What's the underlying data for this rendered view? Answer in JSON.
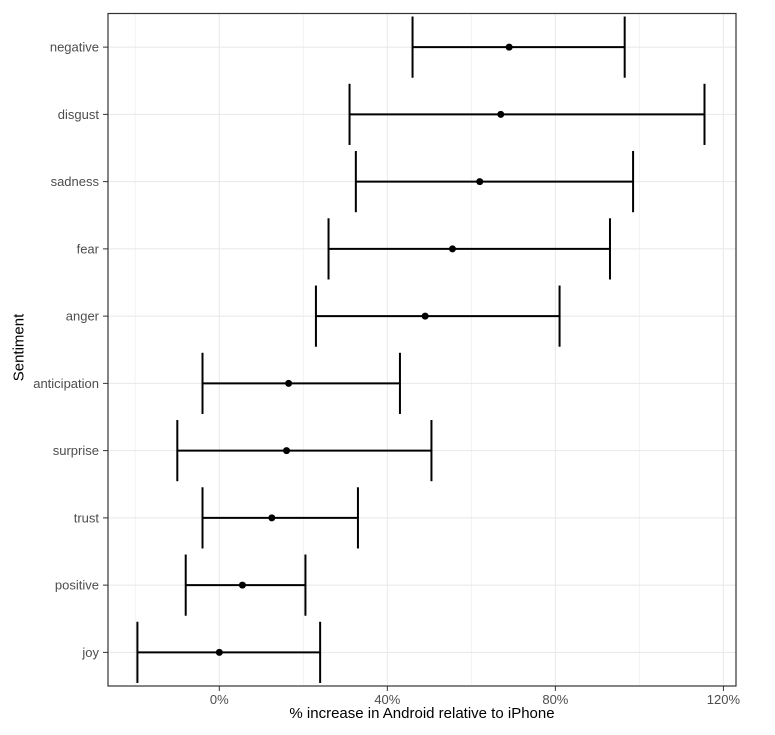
{
  "chart_data": {
    "type": "scatter",
    "subtype": "horizontal-error-bars-with-point-estimates",
    "title": "",
    "xlabel": "% increase in Android relative to iPhone",
    "ylabel": "Sentiment",
    "categories": [
      "negative",
      "disgust",
      "sadness",
      "fear",
      "anger",
      "anticipation",
      "surprise",
      "trust",
      "positive",
      "joy"
    ],
    "series": [
      {
        "name": "estimate",
        "values": [
          69,
          67,
          62,
          55.5,
          49,
          16.5,
          16,
          12.5,
          5.5,
          0
        ],
        "ci_low": [
          46,
          31,
          32.5,
          26,
          23,
          -4,
          -10,
          -4,
          -8,
          -19.5
        ],
        "ci_high": [
          96.5,
          115.5,
          98.5,
          93,
          81,
          43,
          50.5,
          33,
          20.5,
          24
        ]
      }
    ],
    "xlim": [
      -26.5,
      123
    ],
    "x_ticks": [
      0,
      40,
      80,
      120
    ],
    "x_tick_labels": [
      "0%",
      "40%",
      "80%",
      "120%"
    ],
    "x_minor_ticks": [
      -20,
      20,
      60,
      100
    ],
    "grid": true,
    "legend_position": "none",
    "units": "percent"
  },
  "style": {
    "point_color": "#000000",
    "error_bar_color": "#000000",
    "grid_major_color": "#e8e8e8",
    "grid_minor_color": "#f3f3f3",
    "panel_border_color": "#333333",
    "tick_color": "#333333",
    "x_tick_label_color": "#4d4d4d",
    "y_tick_label_color": "#4d4d4d",
    "axis_title_color": "#000000",
    "panel_background": "#ffffff",
    "page_background": "#ffffff"
  }
}
